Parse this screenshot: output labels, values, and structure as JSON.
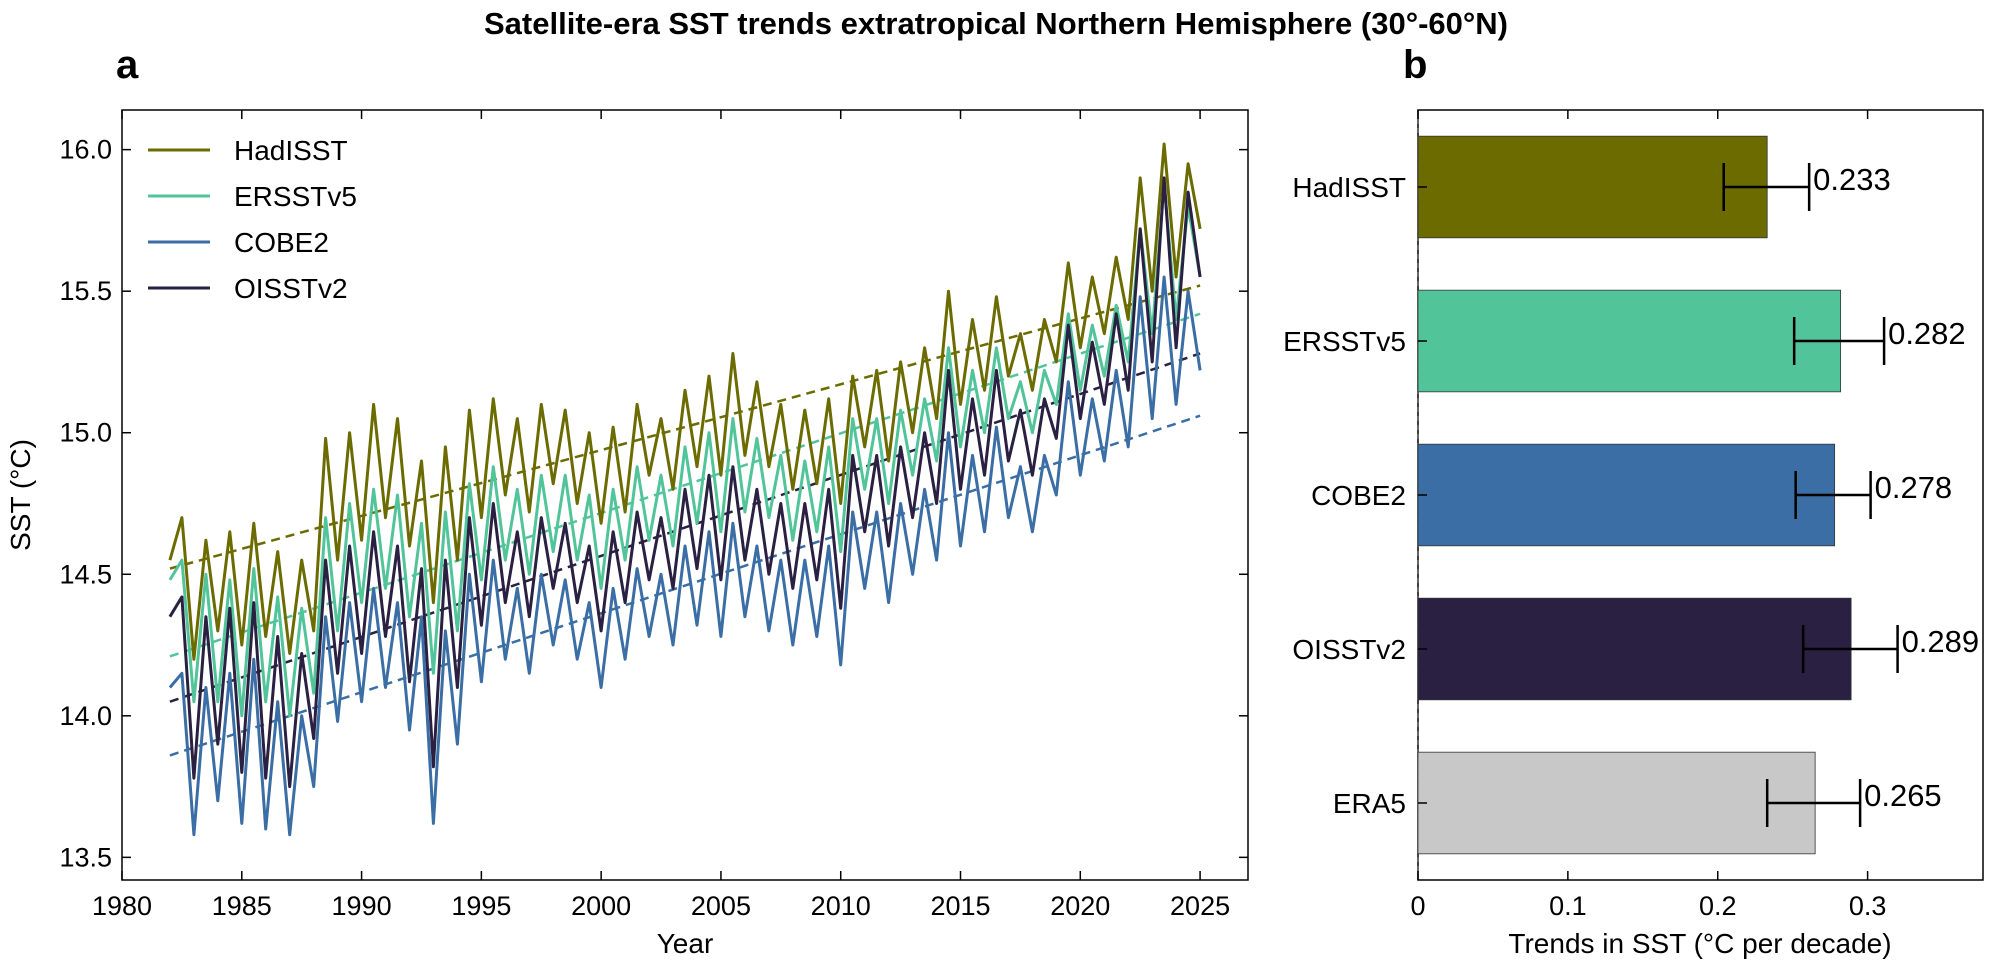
{
  "title": "Satellite-era SST trends extratropical Northern Hemisphere (30°-60°N)",
  "chart_data": [
    {
      "panel": "a",
      "type": "line",
      "xlabel": "Year",
      "ylabel": "SST (°C)",
      "xlim": [
        1980,
        2027
      ],
      "ylim": [
        13.42,
        16.14
      ],
      "xticks": [
        "1980",
        "1985",
        "1990",
        "1995",
        "2000",
        "2005",
        "2010",
        "2015",
        "2020",
        "2025"
      ],
      "yticks": [
        "13.5",
        "14.0",
        "14.5",
        "15.0",
        "15.5",
        "16.0"
      ],
      "legend_position": "top-left",
      "grid": false,
      "series": [
        {
          "name": "HadISST",
          "color": "#6b6b00",
          "trend": {
            "start": [
              1982.0,
              14.52
            ],
            "end": [
              2025.0,
              15.52
            ]
          },
          "x": [
            1982.0,
            1982.5,
            1983.0,
            1983.5,
            1984.0,
            1984.5,
            1985.0,
            1985.5,
            1986.0,
            1986.5,
            1987.0,
            1987.5,
            1988.0,
            1988.5,
            1989.0,
            1989.5,
            1990.0,
            1990.5,
            1991.0,
            1991.5,
            1992.0,
            1992.5,
            1993.0,
            1993.5,
            1994.0,
            1994.5,
            1995.0,
            1995.5,
            1996.0,
            1996.5,
            1997.0,
            1997.5,
            1998.0,
            1998.5,
            1999.0,
            1999.5,
            2000.0,
            2000.5,
            2001.0,
            2001.5,
            2002.0,
            2002.5,
            2003.0,
            2003.5,
            2004.0,
            2004.5,
            2005.0,
            2005.5,
            2006.0,
            2006.5,
            2007.0,
            2007.5,
            2008.0,
            2008.5,
            2009.0,
            2009.5,
            2010.0,
            2010.5,
            2011.0,
            2011.5,
            2012.0,
            2012.5,
            2013.0,
            2013.5,
            2014.0,
            2014.5,
            2015.0,
            2015.5,
            2016.0,
            2016.5,
            2017.0,
            2017.5,
            2018.0,
            2018.5,
            2019.0,
            2019.5,
            2020.0,
            2020.5,
            2021.0,
            2021.5,
            2022.0,
            2022.5,
            2023.0,
            2023.5,
            2024.0,
            2024.5,
            2025.0
          ],
          "y": [
            14.55,
            14.7,
            14.2,
            14.62,
            14.3,
            14.65,
            14.25,
            14.68,
            14.28,
            14.58,
            14.22,
            14.55,
            14.3,
            14.98,
            14.55,
            15.0,
            14.62,
            15.1,
            14.7,
            15.05,
            14.6,
            14.9,
            14.4,
            14.95,
            14.55,
            15.08,
            14.7,
            15.12,
            14.78,
            15.05,
            14.72,
            15.1,
            14.82,
            15.08,
            14.75,
            15.0,
            14.68,
            15.02,
            14.72,
            15.1,
            14.85,
            15.05,
            14.8,
            15.15,
            14.88,
            15.2,
            14.85,
            15.28,
            14.92,
            15.18,
            14.88,
            15.1,
            14.8,
            15.08,
            14.82,
            15.12,
            14.75,
            15.2,
            14.95,
            15.22,
            14.9,
            15.25,
            15.0,
            15.3,
            15.05,
            15.5,
            15.1,
            15.4,
            15.15,
            15.48,
            15.2,
            15.35,
            15.15,
            15.4,
            15.25,
            15.6,
            15.3,
            15.55,
            15.35,
            15.62,
            15.4,
            15.9,
            15.5,
            16.02,
            15.55,
            15.95,
            15.72
          ]
        },
        {
          "name": "ERSSTv5",
          "color": "#52c49a",
          "trend": {
            "start": [
              1982.0,
              14.21
            ],
            "end": [
              2025.0,
              15.42
            ]
          },
          "x": [
            1982.0,
            1982.5,
            1983.0,
            1983.5,
            1984.0,
            1984.5,
            1985.0,
            1985.5,
            1986.0,
            1986.5,
            1987.0,
            1987.5,
            1988.0,
            1988.5,
            1989.0,
            1989.5,
            1990.0,
            1990.5,
            1991.0,
            1991.5,
            1992.0,
            1992.5,
            1993.0,
            1993.5,
            1994.0,
            1994.5,
            1995.0,
            1995.5,
            1996.0,
            1996.5,
            1997.0,
            1997.5,
            1998.0,
            1998.5,
            1999.0,
            1999.5,
            2000.0,
            2000.5,
            2001.0,
            2001.5,
            2002.0,
            2002.5,
            2003.0,
            2003.5,
            2004.0,
            2004.5,
            2005.0,
            2005.5,
            2006.0,
            2006.5,
            2007.0,
            2007.5,
            2008.0,
            2008.5,
            2009.0,
            2009.5,
            2010.0,
            2010.5,
            2011.0,
            2011.5,
            2012.0,
            2012.5,
            2013.0,
            2013.5,
            2014.0,
            2014.5,
            2015.0,
            2015.5,
            2016.0,
            2016.5,
            2017.0,
            2017.5,
            2018.0,
            2018.5,
            2019.0,
            2019.5,
            2020.0,
            2020.5,
            2021.0,
            2021.5,
            2022.0,
            2022.5,
            2023.0,
            2023.5,
            2024.0,
            2024.5,
            2025.0
          ],
          "y": [
            14.48,
            14.55,
            14.05,
            14.5,
            14.05,
            14.48,
            14.0,
            14.52,
            14.05,
            14.42,
            14.0,
            14.38,
            14.08,
            14.7,
            14.3,
            14.75,
            14.4,
            14.8,
            14.45,
            14.78,
            14.35,
            14.68,
            14.15,
            14.72,
            14.3,
            14.82,
            14.48,
            14.88,
            14.55,
            14.8,
            14.5,
            14.85,
            14.58,
            14.85,
            14.55,
            14.78,
            14.45,
            14.8,
            14.55,
            14.88,
            14.62,
            14.85,
            14.6,
            14.95,
            14.68,
            15.0,
            14.65,
            15.05,
            14.72,
            14.98,
            14.7,
            14.92,
            14.62,
            14.9,
            14.65,
            14.95,
            14.58,
            15.05,
            14.8,
            15.05,
            14.75,
            15.08,
            14.85,
            15.12,
            14.9,
            15.3,
            14.95,
            15.22,
            15.0,
            15.3,
            15.05,
            15.18,
            15.0,
            15.22,
            15.1,
            15.42,
            15.15,
            15.38,
            15.2,
            15.45,
            15.25,
            15.72,
            15.35,
            15.88,
            15.4,
            15.8,
            15.55
          ]
        },
        {
          "name": "COBE2",
          "color": "#3a6ea5",
          "trend": {
            "start": [
              1982.0,
              13.86
            ],
            "end": [
              2025.0,
              15.06
            ]
          },
          "x": [
            1982.0,
            1982.5,
            1983.0,
            1983.5,
            1984.0,
            1984.5,
            1985.0,
            1985.5,
            1986.0,
            1986.5,
            1987.0,
            1987.5,
            1988.0,
            1988.5,
            1989.0,
            1989.5,
            1990.0,
            1990.5,
            1991.0,
            1991.5,
            1992.0,
            1992.5,
            1993.0,
            1993.5,
            1994.0,
            1994.5,
            1995.0,
            1995.5,
            1996.0,
            1996.5,
            1997.0,
            1997.5,
            1998.0,
            1998.5,
            1999.0,
            1999.5,
            2000.0,
            2000.5,
            2001.0,
            2001.5,
            2002.0,
            2002.5,
            2003.0,
            2003.5,
            2004.0,
            2004.5,
            2005.0,
            2005.5,
            2006.0,
            2006.5,
            2007.0,
            2007.5,
            2008.0,
            2008.5,
            2009.0,
            2009.5,
            2010.0,
            2010.5,
            2011.0,
            2011.5,
            2012.0,
            2012.5,
            2013.0,
            2013.5,
            2014.0,
            2014.5,
            2015.0,
            2015.5,
            2016.0,
            2016.5,
            2017.0,
            2017.5,
            2018.0,
            2018.5,
            2019.0,
            2019.5,
            2020.0,
            2020.5,
            2021.0,
            2021.5,
            2022.0,
            2022.5,
            2023.0,
            2023.5,
            2024.0,
            2024.5,
            2025.0
          ],
          "y": [
            14.1,
            14.15,
            13.58,
            14.1,
            13.7,
            14.15,
            13.62,
            14.2,
            13.6,
            14.05,
            13.58,
            14.0,
            13.75,
            14.35,
            13.98,
            14.4,
            14.05,
            14.45,
            14.1,
            14.4,
            13.95,
            14.35,
            13.62,
            14.3,
            13.9,
            14.5,
            14.12,
            14.55,
            14.2,
            14.45,
            14.15,
            14.5,
            14.25,
            14.48,
            14.2,
            14.4,
            14.1,
            14.45,
            14.2,
            14.52,
            14.28,
            14.5,
            14.25,
            14.6,
            14.32,
            14.65,
            14.28,
            14.68,
            14.35,
            14.6,
            14.3,
            14.55,
            14.25,
            14.55,
            14.28,
            14.6,
            14.18,
            14.72,
            14.45,
            14.72,
            14.4,
            14.75,
            14.5,
            14.8,
            14.55,
            15.0,
            14.6,
            14.92,
            14.65,
            15.02,
            14.7,
            14.88,
            14.65,
            14.92,
            14.78,
            15.18,
            14.85,
            15.12,
            14.9,
            15.22,
            14.95,
            15.48,
            15.05,
            15.55,
            15.1,
            15.5,
            15.22
          ]
        },
        {
          "name": "OISSTv2",
          "color": "#2a2042",
          "trend": {
            "start": [
              1982.0,
              14.05
            ],
            "end": [
              2025.0,
              15.28
            ]
          },
          "x": [
            1982.0,
            1982.5,
            1983.0,
            1983.5,
            1984.0,
            1984.5,
            1985.0,
            1985.5,
            1986.0,
            1986.5,
            1987.0,
            1987.5,
            1988.0,
            1988.5,
            1989.0,
            1989.5,
            1990.0,
            1990.5,
            1991.0,
            1991.5,
            1992.0,
            1992.5,
            1993.0,
            1993.5,
            1994.0,
            1994.5,
            1995.0,
            1995.5,
            1996.0,
            1996.5,
            1997.0,
            1997.5,
            1998.0,
            1998.5,
            1999.0,
            1999.5,
            2000.0,
            2000.5,
            2001.0,
            2001.5,
            2002.0,
            2002.5,
            2003.0,
            2003.5,
            2004.0,
            2004.5,
            2005.0,
            2005.5,
            2006.0,
            2006.5,
            2007.0,
            2007.5,
            2008.0,
            2008.5,
            2009.0,
            2009.5,
            2010.0,
            2010.5,
            2011.0,
            2011.5,
            2012.0,
            2012.5,
            2013.0,
            2013.5,
            2014.0,
            2014.5,
            2015.0,
            2015.5,
            2016.0,
            2016.5,
            2017.0,
            2017.5,
            2018.0,
            2018.5,
            2019.0,
            2019.5,
            2020.0,
            2020.5,
            2021.0,
            2021.5,
            2022.0,
            2022.5,
            2023.0,
            2023.5,
            2024.0,
            2024.5,
            2025.0
          ],
          "y": [
            14.35,
            14.42,
            13.78,
            14.35,
            13.9,
            14.38,
            13.8,
            14.4,
            13.78,
            14.28,
            13.75,
            14.22,
            13.92,
            14.55,
            14.15,
            14.6,
            14.22,
            14.65,
            14.28,
            14.6,
            14.12,
            14.52,
            13.82,
            14.55,
            14.1,
            14.7,
            14.32,
            14.75,
            14.4,
            14.65,
            14.35,
            14.7,
            14.45,
            14.68,
            14.4,
            14.6,
            14.3,
            14.65,
            14.4,
            14.72,
            14.48,
            14.7,
            14.45,
            14.8,
            14.52,
            14.85,
            14.48,
            14.88,
            14.55,
            14.8,
            14.5,
            14.75,
            14.45,
            14.75,
            14.48,
            14.8,
            14.38,
            14.92,
            14.65,
            14.92,
            14.6,
            14.95,
            14.7,
            15.0,
            14.75,
            15.22,
            14.8,
            15.12,
            14.85,
            15.22,
            14.9,
            15.08,
            14.85,
            15.12,
            14.98,
            15.38,
            15.05,
            15.32,
            15.1,
            15.42,
            15.15,
            15.72,
            15.25,
            15.9,
            15.3,
            15.85,
            15.55
          ]
        }
      ]
    },
    {
      "panel": "b",
      "type": "bar",
      "orientation": "horizontal",
      "xlabel": "Trends in SST (°C per decade)",
      "xlim": [
        0,
        0.377
      ],
      "xticks": [
        "0",
        "0.1",
        "0.2",
        "0.3"
      ],
      "categories": [
        "HadISST",
        "ERSSTv5",
        "COBE2",
        "OISSTv2",
        "ERA5"
      ],
      "values": [
        0.233,
        0.282,
        0.278,
        0.289,
        0.265
      ],
      "value_labels": [
        "0.233",
        "0.282",
        "0.278",
        "0.289",
        "0.265"
      ],
      "error_low": [
        0.204,
        0.251,
        0.252,
        0.257,
        0.233
      ],
      "error_high": [
        0.261,
        0.311,
        0.302,
        0.32,
        0.295
      ],
      "colors": [
        "#6b6b00",
        "#52c49a",
        "#3a6ea5",
        "#2a2042",
        "#c8c8c8"
      ]
    }
  ]
}
